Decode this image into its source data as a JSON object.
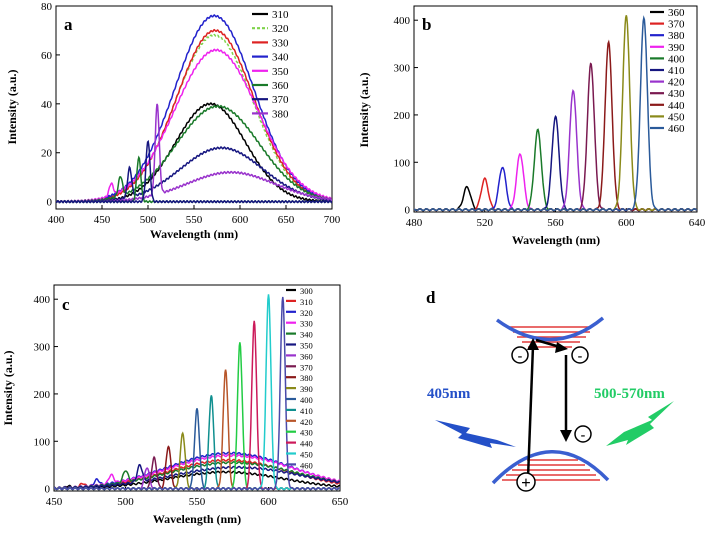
{
  "chart_data": [
    {
      "id": "a",
      "type": "line",
      "panel_label": "a",
      "xlabel": "Wavelength (nm)",
      "ylabel": "Intensity (a.u.)",
      "xlim": [
        400,
        700
      ],
      "ylim": [
        -3,
        80
      ],
      "xticks": [
        "400",
        "450",
        "500",
        "550",
        "600",
        "650",
        "700"
      ],
      "yticks": [
        "0",
        "20",
        "40",
        "60",
        "80"
      ],
      "series": [
        {
          "name": "310",
          "color": "#000000",
          "peak": null,
          "broad": {
            "center": 568,
            "height": 40,
            "width": 38
          }
        },
        {
          "name": "320",
          "color": "#7fd34a",
          "dashed": true,
          "peak": null,
          "broad": {
            "center": 572,
            "height": 68,
            "width": 42
          }
        },
        {
          "name": "330",
          "color": "#dd2222",
          "peak": null,
          "broad": {
            "center": 573,
            "height": 70,
            "width": 42
          }
        },
        {
          "name": "340",
          "color": "#2222cc",
          "peak": null,
          "broad": {
            "center": 572,
            "height": 76,
            "width": 43
          }
        },
        {
          "name": "350",
          "color": "#ee22ee",
          "peak": {
            "center": 460,
            "height": 5
          },
          "broad": {
            "center": 574,
            "height": 62,
            "width": 45
          }
        },
        {
          "name": "360",
          "color": "#1a7a2a",
          "peak": {
            "center": 470,
            "height": 8
          },
          "broad": {
            "center": 576,
            "height": 39,
            "width": 45
          }
        },
        {
          "name": "370",
          "color": "#161680",
          "peak": {
            "center": 480,
            "height": 12
          },
          "broad": {
            "center": 580,
            "height": 22,
            "width": 45
          }
        },
        {
          "name": "380",
          "color": "#9933cc",
          "peak": {
            "center": 510,
            "height": 37
          },
          "broad": {
            "center": 590,
            "height": 12,
            "width": 48
          }
        }
      ],
      "extra_peaks": [
        {
          "center": 490,
          "height": 18,
          "color": "#1a7a2a"
        },
        {
          "center": 500,
          "height": 25,
          "color": "#161680"
        }
      ]
    },
    {
      "id": "b",
      "type": "line",
      "panel_label": "b",
      "xlabel": "Wavelength (nm)",
      "ylabel": "Intensity (a.u.)",
      "xlim": [
        480,
        640
      ],
      "ylim": [
        -5,
        430
      ],
      "xticks": [
        "480",
        "520",
        "560",
        "600",
        "640"
      ],
      "yticks": [
        "0",
        "100",
        "200",
        "300",
        "400"
      ],
      "series": [
        {
          "name": "360",
          "color": "#000000",
          "peak": {
            "center": 510,
            "height": 48
          }
        },
        {
          "name": "370",
          "color": "#dd2222",
          "peak": {
            "center": 520,
            "height": 65
          }
        },
        {
          "name": "380",
          "color": "#2222cc",
          "peak": {
            "center": 530,
            "height": 90
          }
        },
        {
          "name": "390",
          "color": "#ee22ee",
          "peak": {
            "center": 540,
            "height": 118
          }
        },
        {
          "name": "400",
          "color": "#1a7a2a",
          "peak": {
            "center": 550,
            "height": 168
          }
        },
        {
          "name": "410",
          "color": "#161680",
          "peak": {
            "center": 560,
            "height": 197
          }
        },
        {
          "name": "420",
          "color": "#9933cc",
          "peak": {
            "center": 570,
            "height": 253
          }
        },
        {
          "name": "430",
          "color": "#7a1a50",
          "peak": {
            "center": 580,
            "height": 308
          }
        },
        {
          "name": "440",
          "color": "#8b1a1a",
          "peak": {
            "center": 590,
            "height": 353
          }
        },
        {
          "name": "450",
          "color": "#8a8a1a",
          "peak": {
            "center": 600,
            "height": 412
          }
        },
        {
          "name": "460",
          "color": "#2a5a9a",
          "peak": {
            "center": 610,
            "height": 405
          }
        }
      ]
    },
    {
      "id": "c",
      "type": "line",
      "panel_label": "c",
      "xlabel": "Wavelength (nm)",
      "ylabel": "Intensity (a.u.)",
      "xlim": [
        450,
        650
      ],
      "ylim": [
        -5,
        430
      ],
      "xticks": [
        "450",
        "500",
        "550",
        "600",
        "650"
      ],
      "yticks": [
        "0",
        "100",
        "200",
        "300",
        "400"
      ],
      "series": [
        {
          "name": "300",
          "color": "#000000",
          "peak": {
            "center": 460,
            "height": 5
          },
          "broad": {
            "center": 570,
            "height": 35,
            "width": 40
          }
        },
        {
          "name": "310",
          "color": "#dd2222",
          "peak": {
            "center": 470,
            "height": 8
          },
          "broad": {
            "center": 572,
            "height": 60,
            "width": 42
          }
        },
        {
          "name": "320",
          "color": "#2222cc",
          "peak": {
            "center": 480,
            "height": 12
          },
          "broad": {
            "center": 573,
            "height": 75,
            "width": 43
          }
        },
        {
          "name": "330",
          "color": "#ee22ee",
          "peak": {
            "center": 490,
            "height": 18
          },
          "broad": {
            "center": 574,
            "height": 70,
            "width": 44
          }
        },
        {
          "name": "340",
          "color": "#1a7a2a",
          "peak": {
            "center": 500,
            "height": 25
          },
          "broad": {
            "center": 575,
            "height": 55,
            "width": 45
          }
        },
        {
          "name": "350",
          "color": "#161680",
          "peak": {
            "center": 510,
            "height": 35
          },
          "broad": {
            "center": 578,
            "height": 45,
            "width": 46
          }
        },
        {
          "name": "360",
          "color": "#9933cc",
          "peak": {
            "center": 515,
            "height": 45
          }
        },
        {
          "name": "370",
          "color": "#7a1a50",
          "peak": {
            "center": 520,
            "height": 65
          }
        },
        {
          "name": "380",
          "color": "#8b1a1a",
          "peak": {
            "center": 530,
            "height": 90
          }
        },
        {
          "name": "390",
          "color": "#8a8a1a",
          "peak": {
            "center": 540,
            "height": 118
          }
        },
        {
          "name": "400",
          "color": "#2a5a9a",
          "peak": {
            "center": 550,
            "height": 168
          }
        },
        {
          "name": "410",
          "color": "#0f8f8f",
          "peak": {
            "center": 560,
            "height": 197
          }
        },
        {
          "name": "420",
          "color": "#b8562a",
          "peak": {
            "center": 570,
            "height": 253
          }
        },
        {
          "name": "430",
          "color": "#22cc44",
          "peak": {
            "center": 580,
            "height": 308
          }
        },
        {
          "name": "440",
          "color": "#cc1a5a",
          "peak": {
            "center": 590,
            "height": 353
          }
        },
        {
          "name": "450",
          "color": "#22cccc",
          "peak": {
            "center": 600,
            "height": 412
          }
        },
        {
          "name": "460",
          "color": "#4a4aaa",
          "peak": {
            "center": 610,
            "height": 405
          }
        }
      ]
    }
  ],
  "diagram_d": {
    "panel_label": "d",
    "excitation": "405nm",
    "emission": "500-570nm",
    "minus_sign": "-",
    "plus_sign": "+",
    "colors": {
      "band": "#3a5fd0",
      "lines": "#e23a3a",
      "excitation": "#2450c8",
      "emission": "#22cc66"
    }
  }
}
